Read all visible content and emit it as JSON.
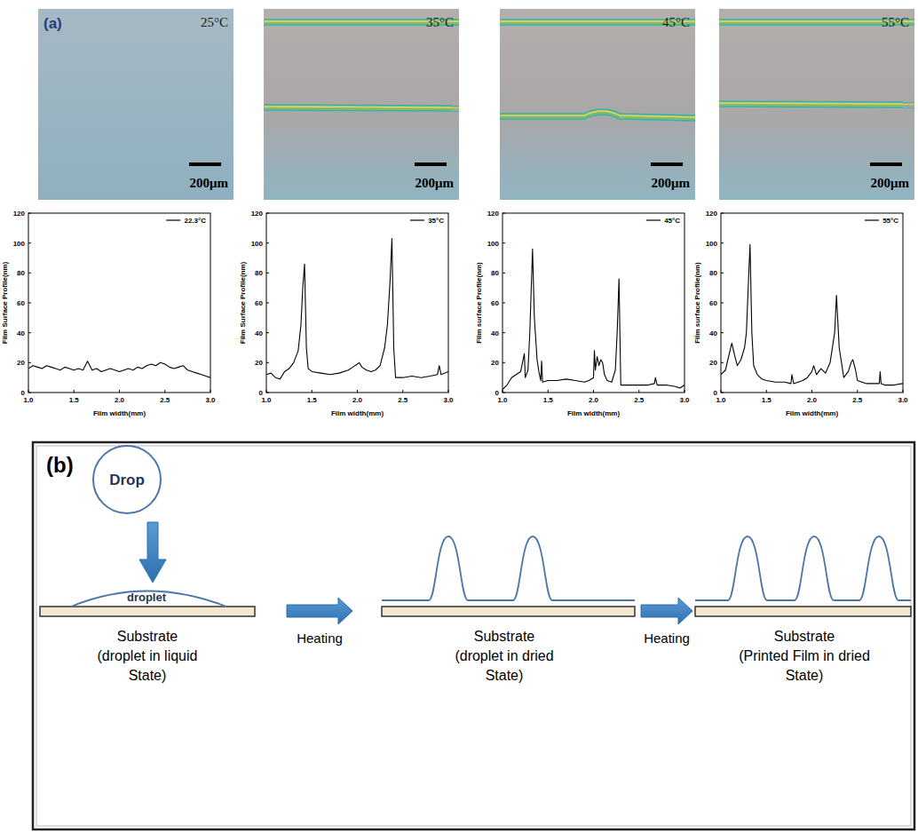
{
  "panel_labels": {
    "a": "(a)",
    "b": "(b)"
  },
  "micrographs": [
    {
      "label": "25°C",
      "scale_bar": "200μm"
    },
    {
      "label": "35°C",
      "scale_bar": "200μm"
    },
    {
      "label": "45°C",
      "scale_bar": "200μm"
    },
    {
      "label": "55°C",
      "scale_bar": "200μm"
    }
  ],
  "chart_data": [
    {
      "type": "line",
      "x_label": "Film width(mm)",
      "y_label": "Film Surface Profile(nm)",
      "legend": "upper right",
      "xlim": [
        1,
        3
      ],
      "ylim": [
        0,
        120
      ],
      "xticks": [
        {
          "value": 1,
          "label": "1.0"
        },
        1.5,
        {
          "value": 2,
          "label": "2.0"
        },
        2.5,
        {
          "value": 3,
          "label": "3.0"
        }
      ],
      "yticks": [
        0,
        20,
        40,
        60,
        80,
        100,
        120
      ],
      "x": [
        1.0,
        1.05,
        1.1,
        1.15,
        1.2,
        1.25,
        1.3,
        1.35,
        1.4,
        1.45,
        1.5,
        1.55,
        1.6,
        1.65,
        1.7,
        1.75,
        1.8,
        1.85,
        1.9,
        1.95,
        2.0,
        2.05,
        2.1,
        2.15,
        2.2,
        2.25,
        2.3,
        2.35,
        2.4,
        2.45,
        2.5,
        2.55,
        2.6,
        2.65,
        2.7,
        2.75,
        2.8,
        2.85,
        2.9,
        2.95,
        3.0
      ],
      "series": [
        {
          "name": "22.3°C",
          "color": "#000000",
          "values": [
            16,
            18,
            17,
            16,
            18,
            17,
            16,
            15,
            17,
            16,
            15,
            16,
            15,
            21,
            15,
            16,
            14,
            15,
            16,
            15,
            14,
            15,
            16,
            15,
            17,
            16,
            18,
            19,
            18,
            20,
            19,
            17,
            16,
            17,
            18,
            15,
            14,
            13,
            12,
            11,
            10
          ]
        }
      ]
    },
    {
      "type": "line",
      "x_label": "Film width(mm)",
      "y_label": "Film Surface Profile(nm)",
      "legend": "upper right",
      "xlim": [
        1,
        3
      ],
      "ylim": [
        0,
        120
      ],
      "xticks": [
        {
          "value": 1,
          "label": "1.0"
        },
        1.5,
        {
          "value": 2,
          "label": "2.0"
        },
        2.5,
        {
          "value": 3,
          "label": "3.0"
        }
      ],
      "yticks": [
        0,
        20,
        40,
        60,
        80,
        100,
        120
      ],
      "x": [
        1.0,
        1.05,
        1.1,
        1.15,
        1.2,
        1.25,
        1.3,
        1.35,
        1.38,
        1.4,
        1.42,
        1.44,
        1.46,
        1.5,
        1.6,
        1.7,
        1.8,
        1.9,
        1.95,
        2.0,
        2.02,
        2.05,
        2.1,
        2.15,
        2.2,
        2.25,
        2.3,
        2.33,
        2.36,
        2.38,
        2.4,
        2.42,
        2.5,
        2.6,
        2.7,
        2.8,
        2.88,
        2.9,
        2.92,
        3.0
      ],
      "series": [
        {
          "name": "35°C",
          "color": "#000000",
          "values": [
            12,
            13,
            10,
            9,
            14,
            16,
            20,
            28,
            45,
            70,
            86,
            30,
            16,
            14,
            13,
            12,
            13,
            15,
            17,
            19,
            20,
            17,
            15,
            14,
            15,
            18,
            30,
            45,
            75,
            103,
            30,
            10,
            10,
            11,
            10,
            11,
            12,
            18,
            12,
            14
          ]
        }
      ]
    },
    {
      "type": "line",
      "x_label": "Film width(mm)",
      "y_label": "Film surface Profile(nm)",
      "legend": "upper right",
      "xlim": [
        1,
        3
      ],
      "ylim": [
        0,
        120
      ],
      "xticks": [
        {
          "value": 1,
          "label": "1.0"
        },
        1.5,
        {
          "value": 2,
          "label": "2.0"
        },
        2.5,
        {
          "value": 3,
          "label": "3.0"
        }
      ],
      "yticks": [
        0,
        20,
        40,
        60,
        80,
        100,
        120
      ],
      "x": [
        1.0,
        1.05,
        1.1,
        1.15,
        1.2,
        1.24,
        1.25,
        1.28,
        1.3,
        1.33,
        1.35,
        1.38,
        1.4,
        1.42,
        1.43,
        1.44,
        1.5,
        1.6,
        1.7,
        1.8,
        1.9,
        1.95,
        2.0,
        2.01,
        2.02,
        2.04,
        2.06,
        2.08,
        2.1,
        2.12,
        2.15,
        2.2,
        2.24,
        2.26,
        2.28,
        2.3,
        2.35,
        2.5,
        2.6,
        2.67,
        2.68,
        2.7,
        2.8,
        2.9,
        2.95,
        3.0
      ],
      "series": [
        {
          "name": "45°C",
          "color": "#000000",
          "values": [
            2,
            5,
            10,
            12,
            14,
            26,
            10,
            15,
            40,
            96,
            50,
            22,
            14,
            8,
            21,
            7,
            8,
            8,
            9,
            8,
            7,
            8,
            10,
            28,
            15,
            24,
            18,
            22,
            20,
            12,
            8,
            7,
            15,
            40,
            76,
            5,
            5,
            5,
            5,
            6,
            10,
            5,
            5,
            4,
            3,
            5
          ]
        }
      ]
    },
    {
      "type": "line",
      "x_label": "Film width(mm)",
      "y_label": "Film surface Profile(nm)",
      "legend": "upper right",
      "xlim": [
        1,
        3
      ],
      "ylim": [
        0,
        120
      ],
      "xticks": [
        {
          "value": 1,
          "label": "1.0"
        },
        1.5,
        {
          "value": 2,
          "label": "2.0"
        },
        2.5,
        {
          "value": 3,
          "label": "3.0"
        }
      ],
      "yticks": [
        0,
        20,
        40,
        60,
        80,
        100,
        120
      ],
      "x": [
        1.0,
        1.05,
        1.1,
        1.12,
        1.15,
        1.18,
        1.22,
        1.26,
        1.28,
        1.3,
        1.32,
        1.34,
        1.36,
        1.4,
        1.45,
        1.5,
        1.6,
        1.7,
        1.77,
        1.78,
        1.8,
        1.9,
        1.95,
        2.0,
        2.02,
        2.05,
        2.1,
        2.15,
        2.2,
        2.25,
        2.27,
        2.3,
        2.35,
        2.4,
        2.43,
        2.45,
        2.48,
        2.5,
        2.6,
        2.7,
        2.74,
        2.75,
        2.76,
        2.8,
        2.9,
        3.0
      ],
      "series": [
        {
          "name": "55°C",
          "color": "#000000",
          "values": [
            12,
            15,
            28,
            33,
            25,
            18,
            22,
            30,
            40,
            70,
            99,
            40,
            18,
            12,
            9,
            8,
            7,
            7,
            6,
            12,
            6,
            8,
            10,
            14,
            18,
            12,
            16,
            13,
            20,
            40,
            65,
            30,
            10,
            14,
            20,
            22,
            15,
            8,
            6,
            6,
            6,
            14,
            6,
            5,
            5,
            6
          ]
        }
      ]
    }
  ],
  "diagram": {
    "drop": "Drop",
    "droplet": "droplet",
    "arrows": [
      "Heating",
      "Heating"
    ],
    "stages": [
      [
        "Substrate",
        "(droplet in liquid",
        "State)"
      ],
      [
        "Substrate",
        "(droplet in dried",
        "State)"
      ],
      [
        "Substrate",
        "(Printed Film in dried",
        "State)"
      ]
    ]
  }
}
